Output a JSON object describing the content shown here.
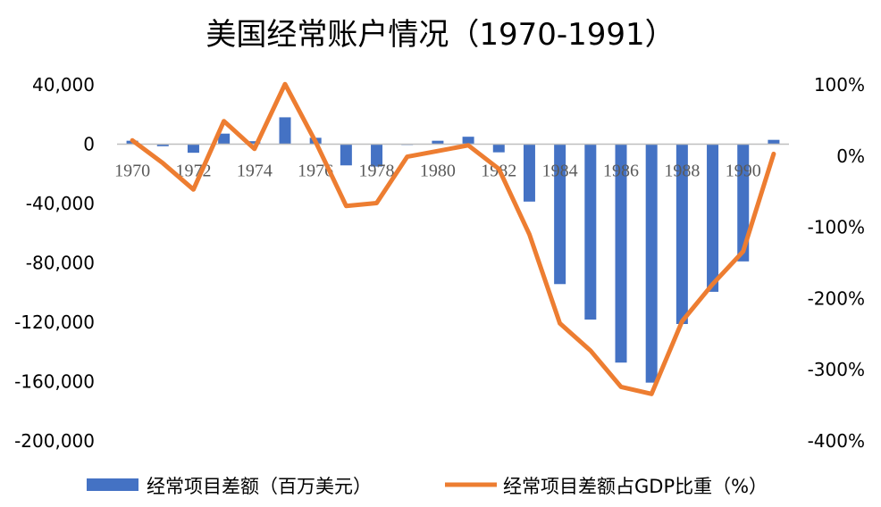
{
  "chart_data": {
    "type": "bar+line",
    "title": "美国经常账户情况（1970-1991）",
    "x": [
      1970,
      1971,
      1972,
      1973,
      1974,
      1975,
      1976,
      1977,
      1978,
      1979,
      1980,
      1981,
      1982,
      1983,
      1984,
      1985,
      1986,
      1987,
      1988,
      1989,
      1990,
      1991
    ],
    "x_tick_labels": [
      "1970",
      "1972",
      "1974",
      "1976",
      "1978",
      "1980",
      "1982",
      "1984",
      "1986",
      "1988",
      "1990"
    ],
    "series": [
      {
        "name": "经常项目差额（百万美元）",
        "type": "bar",
        "axis": "left",
        "color": "#4472C4",
        "values": [
          2300,
          -1400,
          -5800,
          7100,
          2000,
          18100,
          4300,
          -14300,
          -15100,
          -300,
          2300,
          5000,
          -5500,
          -38700,
          -94300,
          -118200,
          -147200,
          -160700,
          -121200,
          -99500,
          -79000,
          2900
        ]
      },
      {
        "name": "经常项目差额占GDP比重（%）",
        "type": "line",
        "axis": "right",
        "color": "#ED7D31",
        "values": [
          22,
          -10,
          -47,
          49,
          10,
          101,
          20,
          -70,
          -66,
          -1,
          7,
          15,
          -18,
          -110,
          -235,
          -273,
          -324,
          -334,
          -232,
          -180,
          -134,
          3
        ]
      }
    ],
    "left_axis": {
      "ylim": [
        -200000,
        40000
      ],
      "ticks": [
        40000,
        0,
        -40000,
        -80000,
        -120000,
        -160000,
        -200000
      ],
      "tick_labels": [
        "40,000",
        "0",
        "-40,000",
        "-80,000",
        "-120,000",
        "-160,000",
        "-200,000"
      ]
    },
    "right_axis": {
      "ylim": [
        -400,
        100
      ],
      "ticks": [
        100,
        0,
        -100,
        -200,
        -300,
        -400
      ],
      "tick_labels": [
        "100%",
        "0%",
        "-100%",
        "-200%",
        "-300%",
        "-400%"
      ]
    },
    "legend_position": "bottom",
    "grid": false
  }
}
